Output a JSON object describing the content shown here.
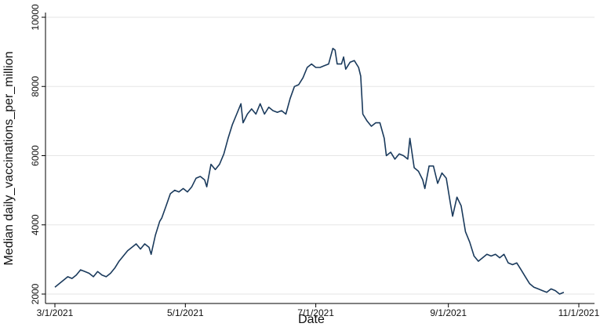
{
  "chart_data": {
    "type": "line",
    "title": "",
    "xlabel": "Date",
    "ylabel": "Median daily_vaccinations_per_million",
    "x_ticks": [
      "3/1/2021",
      "5/1/2021",
      "7/1/2021",
      "9/1/2021",
      "11/1/2021"
    ],
    "y_ticks": [
      2000,
      4000,
      6000,
      8000,
      10000
    ],
    "ylim": [
      2000,
      10000
    ],
    "xlim": [
      "2021-03-01",
      "2021-11-01"
    ],
    "grid": true,
    "colors": {
      "line": "#1a3a5c",
      "grid": "#e6e6e6",
      "axis": "#000000"
    },
    "series": [
      {
        "points": [
          [
            "2021-03-01",
            2200
          ],
          [
            "2021-03-03",
            2300
          ],
          [
            "2021-03-05",
            2400
          ],
          [
            "2021-03-07",
            2500
          ],
          [
            "2021-03-09",
            2450
          ],
          [
            "2021-03-11",
            2550
          ],
          [
            "2021-03-13",
            2700
          ],
          [
            "2021-03-15",
            2650
          ],
          [
            "2021-03-17",
            2600
          ],
          [
            "2021-03-19",
            2500
          ],
          [
            "2021-03-21",
            2650
          ],
          [
            "2021-03-23",
            2550
          ],
          [
            "2021-03-25",
            2500
          ],
          [
            "2021-03-27",
            2600
          ],
          [
            "2021-03-29",
            2750
          ],
          [
            "2021-03-31",
            2950
          ],
          [
            "2021-04-02",
            3100
          ],
          [
            "2021-04-04",
            3250
          ],
          [
            "2021-04-06",
            3350
          ],
          [
            "2021-04-08",
            3450
          ],
          [
            "2021-04-10",
            3300
          ],
          [
            "2021-04-12",
            3450
          ],
          [
            "2021-04-14",
            3350
          ],
          [
            "2021-04-15",
            3150
          ],
          [
            "2021-04-17",
            3700
          ],
          [
            "2021-04-19",
            4100
          ],
          [
            "2021-04-20",
            4200
          ],
          [
            "2021-04-22",
            4550
          ],
          [
            "2021-04-24",
            4900
          ],
          [
            "2021-04-26",
            5000
          ],
          [
            "2021-04-28",
            4950
          ],
          [
            "2021-04-30",
            5050
          ],
          [
            "2021-05-02",
            4950
          ],
          [
            "2021-05-04",
            5100
          ],
          [
            "2021-05-06",
            5350
          ],
          [
            "2021-05-08",
            5400
          ],
          [
            "2021-05-10",
            5300
          ],
          [
            "2021-05-11",
            5100
          ],
          [
            "2021-05-13",
            5750
          ],
          [
            "2021-05-15",
            5600
          ],
          [
            "2021-05-17",
            5750
          ],
          [
            "2021-05-19",
            6050
          ],
          [
            "2021-05-21",
            6500
          ],
          [
            "2021-05-23",
            6900
          ],
          [
            "2021-05-25",
            7200
          ],
          [
            "2021-05-27",
            7500
          ],
          [
            "2021-05-28",
            6950
          ],
          [
            "2021-05-30",
            7200
          ],
          [
            "2021-06-01",
            7350
          ],
          [
            "2021-06-03",
            7200
          ],
          [
            "2021-06-05",
            7500
          ],
          [
            "2021-06-07",
            7200
          ],
          [
            "2021-06-09",
            7400
          ],
          [
            "2021-06-11",
            7300
          ],
          [
            "2021-06-13",
            7250
          ],
          [
            "2021-06-15",
            7300
          ],
          [
            "2021-06-17",
            7200
          ],
          [
            "2021-06-19",
            7650
          ],
          [
            "2021-06-21",
            8000
          ],
          [
            "2021-06-23",
            8050
          ],
          [
            "2021-06-25",
            8250
          ],
          [
            "2021-06-27",
            8550
          ],
          [
            "2021-06-29",
            8650
          ],
          [
            "2021-07-01",
            8550
          ],
          [
            "2021-07-03",
            8550
          ],
          [
            "2021-07-05",
            8600
          ],
          [
            "2021-07-07",
            8650
          ],
          [
            "2021-07-09",
            9100
          ],
          [
            "2021-07-10",
            9050
          ],
          [
            "2021-07-11",
            8650
          ],
          [
            "2021-07-13",
            8650
          ],
          [
            "2021-07-14",
            8850
          ],
          [
            "2021-07-15",
            8500
          ],
          [
            "2021-07-17",
            8700
          ],
          [
            "2021-07-19",
            8750
          ],
          [
            "2021-07-21",
            8550
          ],
          [
            "2021-07-22",
            8300
          ],
          [
            "2021-07-23",
            7200
          ],
          [
            "2021-07-25",
            7000
          ],
          [
            "2021-07-27",
            6850
          ],
          [
            "2021-07-29",
            6950
          ],
          [
            "2021-07-31",
            6950
          ],
          [
            "2021-08-02",
            6500
          ],
          [
            "2021-08-03",
            6000
          ],
          [
            "2021-08-05",
            6100
          ],
          [
            "2021-08-07",
            5900
          ],
          [
            "2021-08-09",
            6050
          ],
          [
            "2021-08-11",
            6000
          ],
          [
            "2021-08-13",
            5900
          ],
          [
            "2021-08-14",
            6500
          ],
          [
            "2021-08-16",
            5650
          ],
          [
            "2021-08-18",
            5550
          ],
          [
            "2021-08-20",
            5300
          ],
          [
            "2021-08-21",
            5050
          ],
          [
            "2021-08-23",
            5700
          ],
          [
            "2021-08-25",
            5700
          ],
          [
            "2021-08-27",
            5200
          ],
          [
            "2021-08-29",
            5500
          ],
          [
            "2021-08-31",
            5350
          ],
          [
            "2021-09-02",
            4600
          ],
          [
            "2021-09-03",
            4250
          ],
          [
            "2021-09-05",
            4800
          ],
          [
            "2021-09-07",
            4550
          ],
          [
            "2021-09-09",
            3800
          ],
          [
            "2021-09-11",
            3500
          ],
          [
            "2021-09-13",
            3100
          ],
          [
            "2021-09-15",
            2950
          ],
          [
            "2021-09-17",
            3050
          ],
          [
            "2021-09-19",
            3150
          ],
          [
            "2021-09-21",
            3100
          ],
          [
            "2021-09-23",
            3150
          ],
          [
            "2021-09-25",
            3050
          ],
          [
            "2021-09-27",
            3150
          ],
          [
            "2021-09-29",
            2900
          ],
          [
            "2021-10-01",
            2850
          ],
          [
            "2021-10-03",
            2900
          ],
          [
            "2021-10-05",
            2700
          ],
          [
            "2021-10-07",
            2500
          ],
          [
            "2021-10-09",
            2300
          ],
          [
            "2021-10-11",
            2200
          ],
          [
            "2021-10-13",
            2150
          ],
          [
            "2021-10-15",
            2100
          ],
          [
            "2021-10-17",
            2050
          ],
          [
            "2021-10-19",
            2150
          ],
          [
            "2021-10-21",
            2100
          ],
          [
            "2021-10-23",
            2000
          ],
          [
            "2021-10-25",
            2050
          ]
        ]
      }
    ]
  }
}
